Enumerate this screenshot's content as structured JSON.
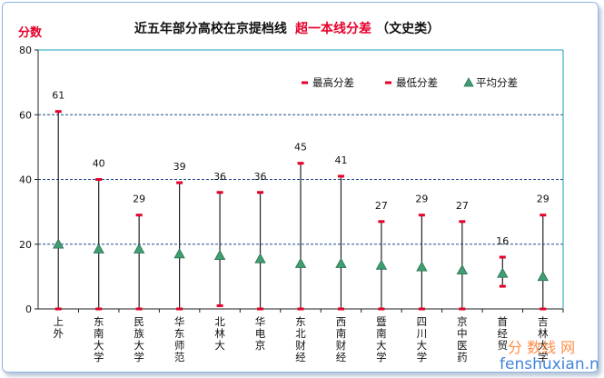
{
  "chart_data": {
    "type": "error-range",
    "title": "近五年部分高校在京提档线",
    "title_highlight": "超一本线分差",
    "title_suffix": "（文史类）",
    "ylabel": "分数",
    "ylim": [
      0,
      80
    ],
    "yticks": [
      0,
      20,
      40,
      60,
      80
    ],
    "grid": true,
    "legend": {
      "position": "top-right",
      "entries": [
        "最高分差",
        "最低分差",
        "平均分差"
      ]
    },
    "categories": [
      "上外",
      "东南大学",
      "民族大学",
      "华东师范",
      "北林大",
      "华电京",
      "东北财经",
      "西南财经",
      "暨南大学",
      "四川大学",
      "京中医药",
      "首经贸",
      "吉林大学"
    ],
    "series": [
      {
        "name": "最高分差",
        "values": [
          61,
          40,
          29,
          39,
          36,
          36,
          45,
          41,
          27,
          29,
          27,
          16,
          29
        ]
      },
      {
        "name": "最低分差",
        "values": [
          0,
          0,
          0,
          0,
          1,
          0,
          0,
          0,
          0,
          0,
          0,
          7,
          0
        ]
      },
      {
        "name": "平均分差",
        "values": [
          20,
          18.5,
          18.5,
          17,
          16.5,
          15.5,
          14,
          14,
          13.5,
          13,
          12,
          11,
          10
        ]
      }
    ],
    "data_labels": [
      61,
      40,
      29,
      39,
      36,
      36,
      45,
      41,
      27,
      29,
      27,
      16,
      29
    ]
  },
  "watermark": {
    "cn": "分 数线 网",
    "en": "fenshuxian.net"
  },
  "colors": {
    "max_marker": "#e4002b",
    "min_marker": "#e4002b",
    "avg_marker": "#3f9e72",
    "avg_outline": "#2e6f50",
    "range_line": "#222222",
    "grid": "#1e4a8a",
    "axis": "#222222"
  }
}
